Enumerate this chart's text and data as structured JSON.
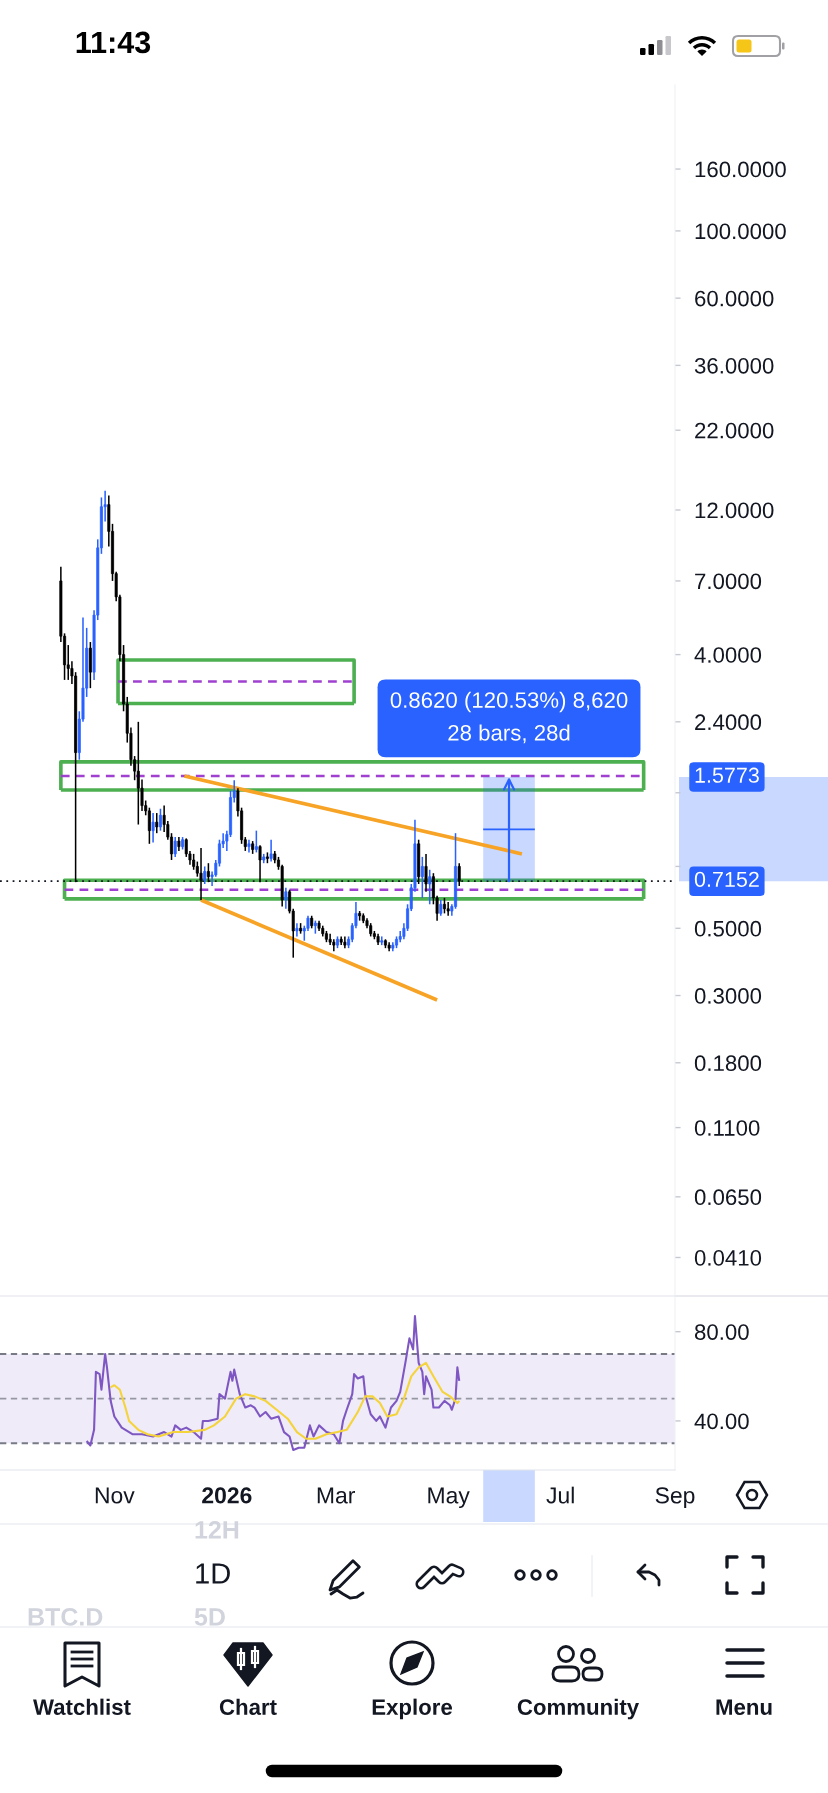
{
  "chart_data": [
    {
      "type": "candlestick",
      "log": true,
      "x": [
        "2025-10-03",
        "2025-10-05",
        "2025-10-07",
        "2025-10-09",
        "2025-10-11",
        "2025-10-13",
        "2025-10-15",
        "2025-10-17",
        "2025-10-19",
        "2025-10-21",
        "2025-10-23",
        "2025-10-25",
        "2025-10-27",
        "2025-10-29",
        "2025-10-31",
        "2025-11-02",
        "2025-11-04",
        "2025-11-06",
        "2025-11-08",
        "2025-11-10",
        "2025-11-12",
        "2025-11-14",
        "2025-11-16",
        "2025-11-18",
        "2025-11-20",
        "2025-11-22",
        "2025-11-24",
        "2025-11-26",
        "2025-11-28",
        "2025-11-30",
        "2025-12-02",
        "2025-12-04",
        "2025-12-06",
        "2025-12-08",
        "2025-12-10",
        "2025-12-12",
        "2025-12-14",
        "2025-12-16",
        "2025-12-18",
        "2025-12-20",
        "2025-12-22",
        "2025-12-24",
        "2025-12-26",
        "2025-12-28",
        "2025-12-30",
        "2026-01-01",
        "2026-01-03",
        "2026-01-05",
        "2026-01-07",
        "2026-01-09",
        "2026-01-11",
        "2026-01-13",
        "2026-01-15",
        "2026-01-17",
        "2026-01-19",
        "2026-01-21",
        "2026-01-23",
        "2026-01-25",
        "2026-01-27",
        "2026-01-29",
        "2026-01-31",
        "2026-02-02",
        "2026-02-04",
        "2026-02-06",
        "2026-02-08",
        "2026-02-10",
        "2026-02-12",
        "2026-02-14",
        "2026-02-16",
        "2026-02-18",
        "2026-02-20",
        "2026-02-22",
        "2026-02-24",
        "2026-02-26",
        "2026-02-28",
        "2026-03-02",
        "2026-03-04",
        "2026-03-06",
        "2026-03-08",
        "2026-03-10",
        "2026-03-12",
        "2026-03-14",
        "2026-03-16",
        "2026-03-18",
        "2026-03-20",
        "2026-03-22",
        "2026-03-24",
        "2026-03-26",
        "2026-03-28",
        "2026-03-30",
        "2026-04-01",
        "2026-04-03",
        "2026-04-05",
        "2026-04-07",
        "2026-04-09",
        "2026-04-11",
        "2026-04-13",
        "2026-04-15",
        "2026-04-17",
        "2026-04-19",
        "2026-04-21",
        "2026-04-23",
        "2026-04-25",
        "2026-04-27",
        "2026-04-29",
        "2026-05-01",
        "2026-05-03",
        "2026-05-05",
        "2026-05-07"
      ],
      "ohlc": [
        [
          7.0,
          7.8,
          4.4,
          4.6
        ],
        [
          4.6,
          4.7,
          3.3,
          3.7
        ],
        [
          3.7,
          4.3,
          3.3,
          3.6
        ],
        [
          3.6,
          3.8,
          3.2,
          3.4
        ],
        [
          3.4,
          3.5,
          0.71,
          1.9
        ],
        [
          1.9,
          2.6,
          1.8,
          2.45
        ],
        [
          2.45,
          5.3,
          2.4,
          3.1
        ],
        [
          3.1,
          4.9,
          2.9,
          4.2
        ],
        [
          4.2,
          4.4,
          3.1,
          3.5
        ],
        [
          3.5,
          5.6,
          3.3,
          5.4
        ],
        [
          5.4,
          9.6,
          5.2,
          9.0
        ],
        [
          9.0,
          13.2,
          8.6,
          12.3
        ],
        [
          12.3,
          13.9,
          11.0,
          12.5
        ],
        [
          12.5,
          13.4,
          9.1,
          10.2
        ],
        [
          10.2,
          10.8,
          7.0,
          7.4
        ],
        [
          7.4,
          7.5,
          6.0,
          6.2
        ],
        [
          6.2,
          6.3,
          3.8,
          4.0
        ],
        [
          4.0,
          4.3,
          2.6,
          2.75
        ],
        [
          2.75,
          2.9,
          2.05,
          2.2
        ],
        [
          2.2,
          2.3,
          1.72,
          1.8
        ],
        [
          1.8,
          1.85,
          1.54,
          1.65
        ],
        [
          1.65,
          2.4,
          1.1,
          1.45
        ],
        [
          1.45,
          1.55,
          1.22,
          1.27
        ],
        [
          1.27,
          1.32,
          1.18,
          1.22
        ],
        [
          1.22,
          1.25,
          0.95,
          1.05
        ],
        [
          1.05,
          1.2,
          0.96,
          1.12
        ],
        [
          1.12,
          1.2,
          1.03,
          1.08
        ],
        [
          1.08,
          1.24,
          1.05,
          1.18
        ],
        [
          1.18,
          1.27,
          1.04,
          1.1
        ],
        [
          1.1,
          1.13,
          0.98,
          1.0
        ],
        [
          1.0,
          1.03,
          0.84,
          0.88
        ],
        [
          0.88,
          1.0,
          0.86,
          0.97
        ],
        [
          0.97,
          1.0,
          0.9,
          0.93
        ],
        [
          0.93,
          1.0,
          0.91,
          0.98
        ],
        [
          0.98,
          0.99,
          0.86,
          0.88
        ],
        [
          0.88,
          0.9,
          0.81,
          0.84
        ],
        [
          0.84,
          0.88,
          0.78,
          0.8
        ],
        [
          0.8,
          0.83,
          0.74,
          0.76
        ],
        [
          0.76,
          0.92,
          0.62,
          0.72
        ],
        [
          0.72,
          0.8,
          0.7,
          0.77
        ],
        [
          0.77,
          0.82,
          0.71,
          0.74
        ],
        [
          0.74,
          0.77,
          0.69,
          0.75
        ],
        [
          0.75,
          0.84,
          0.74,
          0.82
        ],
        [
          0.82,
          0.98,
          0.8,
          0.95
        ],
        [
          0.95,
          1.03,
          0.92,
          0.97
        ],
        [
          0.97,
          1.05,
          0.9,
          1.02
        ],
        [
          1.02,
          1.42,
          1.0,
          1.35
        ],
        [
          1.35,
          1.54,
          1.3,
          1.42
        ],
        [
          1.42,
          1.45,
          1.17,
          1.22
        ],
        [
          1.22,
          1.25,
          0.95,
          0.98
        ],
        [
          0.98,
          1.0,
          0.9,
          0.93
        ],
        [
          0.93,
          0.98,
          0.89,
          0.95
        ],
        [
          0.95,
          0.97,
          0.88,
          0.91
        ],
        [
          0.91,
          1.05,
          0.89,
          0.93
        ],
        [
          0.93,
          0.94,
          0.71,
          0.84
        ],
        [
          0.84,
          0.88,
          0.82,
          0.86
        ],
        [
          0.86,
          0.89,
          0.82,
          0.85
        ],
        [
          0.85,
          0.98,
          0.83,
          0.88
        ],
        [
          0.88,
          0.9,
          0.82,
          0.84
        ],
        [
          0.84,
          0.86,
          0.78,
          0.8
        ],
        [
          0.8,
          0.81,
          0.59,
          0.62
        ],
        [
          0.62,
          0.68,
          0.58,
          0.66
        ],
        [
          0.66,
          0.67,
          0.56,
          0.57
        ],
        [
          0.57,
          0.58,
          0.4,
          0.49
        ],
        [
          0.49,
          0.52,
          0.47,
          0.5
        ],
        [
          0.5,
          0.52,
          0.48,
          0.49
        ],
        [
          0.49,
          0.51,
          0.455,
          0.5
        ],
        [
          0.5,
          0.55,
          0.49,
          0.54
        ],
        [
          0.54,
          0.55,
          0.5,
          0.51
        ],
        [
          0.51,
          0.53,
          0.48,
          0.52
        ],
        [
          0.52,
          0.53,
          0.49,
          0.5
        ],
        [
          0.5,
          0.51,
          0.47,
          0.48
        ],
        [
          0.48,
          0.49,
          0.45,
          0.46
        ],
        [
          0.46,
          0.48,
          0.44,
          0.45
        ],
        [
          0.45,
          0.46,
          0.42,
          0.44
        ],
        [
          0.44,
          0.47,
          0.43,
          0.46
        ],
        [
          0.46,
          0.47,
          0.44,
          0.45
        ],
        [
          0.45,
          0.47,
          0.43,
          0.44
        ],
        [
          0.44,
          0.47,
          0.43,
          0.46
        ],
        [
          0.46,
          0.52,
          0.45,
          0.51
        ],
        [
          0.51,
          0.61,
          0.5,
          0.56
        ],
        [
          0.56,
          0.57,
          0.53,
          0.55
        ],
        [
          0.55,
          0.56,
          0.52,
          0.53
        ],
        [
          0.53,
          0.54,
          0.5,
          0.51
        ],
        [
          0.51,
          0.52,
          0.47,
          0.48
        ],
        [
          0.48,
          0.49,
          0.46,
          0.47
        ],
        [
          0.47,
          0.48,
          0.44,
          0.45
        ],
        [
          0.45,
          0.47,
          0.44,
          0.455
        ],
        [
          0.455,
          0.46,
          0.43,
          0.44
        ],
        [
          0.44,
          0.45,
          0.42,
          0.43
        ],
        [
          0.43,
          0.45,
          0.42,
          0.44
        ],
        [
          0.44,
          0.47,
          0.43,
          0.46
        ],
        [
          0.46,
          0.49,
          0.45,
          0.47
        ],
        [
          0.47,
          0.52,
          0.46,
          0.5
        ],
        [
          0.5,
          0.6,
          0.49,
          0.58
        ],
        [
          0.58,
          0.7,
          0.57,
          0.68
        ],
        [
          0.68,
          1.14,
          0.66,
          0.95
        ],
        [
          0.95,
          0.98,
          0.7,
          0.74
        ],
        [
          0.74,
          0.86,
          0.63,
          0.8
        ],
        [
          0.8,
          0.88,
          0.66,
          0.7
        ],
        [
          0.7,
          0.78,
          0.6,
          0.74
        ],
        [
          0.74,
          0.76,
          0.6,
          0.63
        ],
        [
          0.63,
          0.64,
          0.53,
          0.56
        ],
        [
          0.56,
          0.62,
          0.55,
          0.6
        ],
        [
          0.6,
          0.63,
          0.56,
          0.58
        ],
        [
          0.58,
          0.61,
          0.55,
          0.57
        ],
        [
          0.57,
          0.6,
          0.55,
          0.59
        ],
        [
          0.59,
          1.03,
          0.58,
          0.8
        ],
        [
          0.8,
          0.82,
          0.69,
          0.7152
        ]
      ],
      "colors": [
        "#000000",
        "#000000",
        "#000000",
        "#000000",
        "#000000",
        "#2962ff",
        "#2962ff",
        "#2962ff",
        "#000000",
        "#2962ff",
        "#2962ff",
        "#2962ff",
        "#2962ff",
        "#000000",
        "#000000",
        "#000000",
        "#000000",
        "#000000",
        "#000000",
        "#000000",
        "#000000",
        "#000000",
        "#000000",
        "#000000",
        "#000000",
        "#2962ff",
        "#000000",
        "#2962ff",
        "#000000",
        "#000000",
        "#000000",
        "#2962ff",
        "#000000",
        "#2962ff",
        "#000000",
        "#000000",
        "#000000",
        "#000000",
        "#000000",
        "#2962ff",
        "#000000",
        "#2962ff",
        "#2962ff",
        "#2962ff",
        "#2962ff",
        "#2962ff",
        "#2962ff",
        "#2962ff",
        "#000000",
        "#000000",
        "#000000",
        "#2962ff",
        "#000000",
        "#2962ff",
        "#000000",
        "#2962ff",
        "#000000",
        "#2962ff",
        "#000000",
        "#000000",
        "#000000",
        "#2962ff",
        "#000000",
        "#000000",
        "#2962ff",
        "#000000",
        "#2962ff",
        "#2962ff",
        "#000000",
        "#2962ff",
        "#000000",
        "#000000",
        "#000000",
        "#000000",
        "#000000",
        "#2962ff",
        "#000000",
        "#000000",
        "#2962ff",
        "#2962ff",
        "#2962ff",
        "#000000",
        "#000000",
        "#000000",
        "#000000",
        "#000000",
        "#000000",
        "#2962ff",
        "#000000",
        "#000000",
        "#2962ff",
        "#2962ff",
        "#2962ff",
        "#2962ff",
        "#2962ff",
        "#2962ff",
        "#2962ff",
        "#000000",
        "#2962ff",
        "#000000",
        "#2962ff",
        "#000000",
        "#000000",
        "#2962ff",
        "#000000",
        "#000000",
        "#2962ff",
        "#2962ff",
        "#000000"
      ],
      "series": [
        {
          "type": "line",
          "color": "#4caf50",
          "x": [
            "2025-11-03",
            "2025-11-03",
            "2026-03-11",
            "2026-03-11"
          ],
          "values": [
            2.76,
            3.84,
            3.84,
            2.76
          ]
        },
        {
          "type": "line",
          "color": "#4caf50",
          "x": [
            "2025-11-03",
            "2026-03-11"
          ],
          "values": [
            2.76,
            2.76
          ]
        },
        {
          "type": "line",
          "color": "#a040d0",
          "line_style": "dashed",
          "x": [
            "2025-11-03",
            "2026-03-11"
          ],
          "values": [
            3.26,
            3.26
          ]
        },
        {
          "type": "line",
          "color": "#4caf50",
          "x": [
            "2025-10-03",
            "2025-10-03",
            "2026-08-15",
            "2026-08-15"
          ],
          "values": [
            1.43,
            1.77,
            1.77,
            1.43
          ]
        },
        {
          "type": "line",
          "color": "#4caf50",
          "x": [
            "2025-10-03",
            "2026-08-15"
          ],
          "values": [
            1.43,
            1.43
          ]
        },
        {
          "type": "line",
          "color": "#a040d0",
          "line_style": "dashed",
          "x": [
            "2025-10-03",
            "2026-08-15"
          ],
          "values": [
            1.59,
            1.59
          ]
        },
        {
          "type": "line",
          "color": "#4caf50",
          "x": [
            "2025-10-05",
            "2025-10-05",
            "2026-08-15",
            "2026-08-15"
          ],
          "values": [
            0.625,
            0.72,
            0.72,
            0.625
          ]
        },
        {
          "type": "line",
          "color": "#4caf50",
          "x": [
            "2025-10-05",
            "2026-08-15"
          ],
          "values": [
            0.625,
            0.625
          ]
        },
        {
          "type": "line",
          "color": "#a040d0",
          "line_style": "dashed",
          "x": [
            "2025-10-05",
            "2026-08-15"
          ],
          "values": [
            0.67,
            0.67
          ]
        },
        {
          "type": "line",
          "color": "#2962ff",
          "x": [
            "2026-05-20",
            "2026-06-17"
          ],
          "values": [
            1.06,
            1.06
          ],
          "lower": [
            0.7152,
            0.7152
          ],
          "upper": [
            1.5773,
            1.5773
          ]
        },
        {
          "type": "line",
          "color": "#f7a325",
          "x": [
            "2025-12-09",
            "2026-06-10"
          ],
          "values": [
            1.59,
            0.88
          ]
        },
        {
          "type": "line",
          "color": "#f7a325",
          "x": [
            "2025-12-18",
            "2026-04-25"
          ],
          "values": [
            0.62,
            0.29
          ]
        }
      ],
      "xlim": [
        "2025-08-31",
        "2026-09-01"
      ],
      "ylim": [
        0.0306,
        303
      ],
      "yticks": [
        {
          "value": 160,
          "label": "160.0000"
        },
        {
          "value": 100,
          "label": "100.0000"
        },
        {
          "value": 60,
          "label": "60.0000"
        },
        {
          "value": 36,
          "label": "36.0000"
        },
        {
          "value": 22,
          "label": "22.0000"
        },
        {
          "value": 12,
          "label": "12.0000"
        },
        {
          "value": 7,
          "label": "7.0000"
        },
        {
          "value": 4,
          "label": "4.0000"
        },
        {
          "value": 2.4,
          "label": "2.4000"
        },
        {
          "value": 1.4,
          "label": null
        },
        {
          "value": 0.8,
          "label": null
        },
        {
          "value": 0.5,
          "label": "0.5000"
        },
        {
          "value": 0.3,
          "label": "0.3000"
        },
        {
          "value": 0.18,
          "label": "0.1800"
        },
        {
          "value": 0.11,
          "label": "0.1100"
        },
        {
          "value": 0.065,
          "label": "0.0650"
        },
        {
          "value": 0.041,
          "label": "0.0410"
        }
      ],
      "tick_labels": "y",
      "ref_lines": [
        {
          "axis": "y",
          "value": 0.7152,
          "label": "0.7152",
          "line_style": "dotted",
          "color": "#131722"
        }
      ],
      "annotations": [
        {
          "text": "0.8620 (120.53%) 8,620\n28 bars, 28d",
          "x": "2026-06-03",
          "y": 1.5773
        },
        "1.5773"
      ]
    },
    {
      "type": "line",
      "series": [
        {
          "color": "#7e57c2",
          "x": [
            "2025-10-17",
            "2025-10-19",
            "2025-10-21",
            "2025-10-22",
            "2025-10-24",
            "2025-10-25",
            "2025-10-27",
            "2025-10-28",
            "2025-10-30",
            "2025-11-01",
            "2025-11-05",
            "2025-11-11",
            "2025-11-16",
            "2025-11-22",
            "2025-11-28",
            "2025-12-02",
            "2025-12-04",
            "2025-12-07",
            "2025-12-10",
            "2025-12-14",
            "2025-12-18",
            "2025-12-19",
            "2025-12-22",
            "2025-12-27",
            "2025-12-28",
            "2025-12-31",
            "2026-01-03",
            "2026-01-04",
            "2026-01-05",
            "2026-01-08",
            "2026-01-11",
            "2026-01-14",
            "2026-01-16",
            "2026-01-19",
            "2026-01-22",
            "2026-01-25",
            "2026-01-29",
            "2026-02-01",
            "2026-02-04",
            "2026-02-06",
            "2026-02-09",
            "2026-02-12",
            "2026-02-15",
            "2026-02-17",
            "2026-02-20",
            "2026-02-24",
            "2026-02-28",
            "2026-03-03",
            "2026-03-05",
            "2026-03-07",
            "2026-03-10",
            "2026-03-11",
            "2026-03-13",
            "2026-03-16",
            "2026-03-17",
            "2026-03-20",
            "2026-03-23",
            "2026-03-25",
            "2026-03-28",
            "2026-03-31",
            "2026-04-03",
            "2026-04-05",
            "2026-04-08",
            "2026-04-10",
            "2026-04-12",
            "2026-04-13",
            "2026-04-15",
            "2026-04-17",
            "2026-04-18",
            "2026-04-19",
            "2026-04-22",
            "2026-04-23",
            "2026-04-26",
            "2026-04-29",
            "2026-05-02",
            "2026-05-03",
            "2026-05-05",
            "2026-05-06",
            "2026-05-07"
          ],
          "values": [
            31,
            29,
            36,
            62,
            61,
            54,
            70,
            64,
            49,
            42,
            37,
            34,
            34,
            33,
            35,
            33,
            38,
            36,
            37,
            35,
            32,
            40,
            40,
            41,
            52,
            50,
            62,
            58,
            63,
            52,
            46,
            47,
            46,
            42,
            44,
            41,
            42,
            35,
            33,
            27,
            28,
            28,
            38,
            33,
            38,
            35,
            34,
            30,
            40,
            45,
            52,
            61,
            59,
            60,
            52,
            43,
            40,
            42,
            37,
            46,
            49,
            53,
            67,
            77,
            72,
            87,
            66,
            62,
            52,
            60,
            54,
            46,
            46,
            49,
            47,
            45,
            50,
            64,
            58
          ]
        },
        {
          "color": "#f5d33a",
          "x": [
            "2025-10-30",
            "2025-11-01",
            "2025-11-04",
            "2025-11-07",
            "2025-11-09",
            "2025-11-14",
            "2025-11-19",
            "2025-11-25",
            "2025-12-03",
            "2025-12-11",
            "2025-12-20",
            "2025-12-25",
            "2025-12-31",
            "2026-01-06",
            "2026-01-11",
            "2026-01-16",
            "2026-01-22",
            "2026-01-28",
            "2026-02-03",
            "2026-02-08",
            "2026-02-13",
            "2026-02-18",
            "2026-02-24",
            "2026-03-02",
            "2026-03-07",
            "2026-03-13",
            "2026-03-17",
            "2026-03-21",
            "2026-03-25",
            "2026-03-29",
            "2026-04-03",
            "2026-04-07",
            "2026-04-11",
            "2026-04-15",
            "2026-04-19",
            "2026-04-23",
            "2026-04-28",
            "2026-05-02",
            "2026-05-06",
            "2026-05-07"
          ],
          "values": [
            55,
            56,
            54,
            46,
            40,
            36,
            34,
            33,
            35,
            35,
            36,
            38,
            42,
            50,
            52,
            51,
            49,
            45,
            41,
            35,
            32,
            32,
            34,
            35,
            36,
            44,
            51,
            51,
            48,
            42,
            43,
            50,
            60,
            64,
            66,
            60,
            53,
            51,
            48,
            49
          ]
        }
      ],
      "xlim": [
        "2025-08-31",
        "2026-09-01"
      ],
      "xticks": [
        {
          "value": "2025-11-01",
          "label": "Nov"
        },
        {
          "value": "2026-01-01",
          "label": "2026"
        },
        {
          "value": "2026-03-01",
          "label": "Mar"
        },
        {
          "value": "2026-05-01",
          "label": "May"
        },
        {
          "value": "2026-07-01",
          "label": "Jul"
        },
        {
          "value": "2026-09-01",
          "label": "Sep"
        }
      ],
      "ylim": [
        18,
        96
      ],
      "yticks": [
        {
          "value": 80,
          "label": "80.00"
        },
        {
          "value": 40,
          "label": "40.00"
        }
      ],
      "bands": [
        {
          "axis": "y",
          "from": 30,
          "to": 70,
          "color": "#efebf8"
        }
      ],
      "ref_lines": [
        {
          "axis": "y",
          "value": 70,
          "line_style": "dashed",
          "color": "#787b86"
        },
        {
          "axis": "y",
          "value": 50,
          "line_style": "dashed",
          "color": "#9598a1"
        },
        {
          "axis": "y",
          "value": 30,
          "line_style": "dashed",
          "color": "#787b86"
        }
      ]
    },
    {
      "type": "other",
      "annotations": [
        "11:43",
        "12H",
        "1D",
        "BTC.D",
        "5D",
        "Watchlist",
        "Chart",
        "Explore",
        "Community",
        "Menu"
      ]
    }
  ]
}
